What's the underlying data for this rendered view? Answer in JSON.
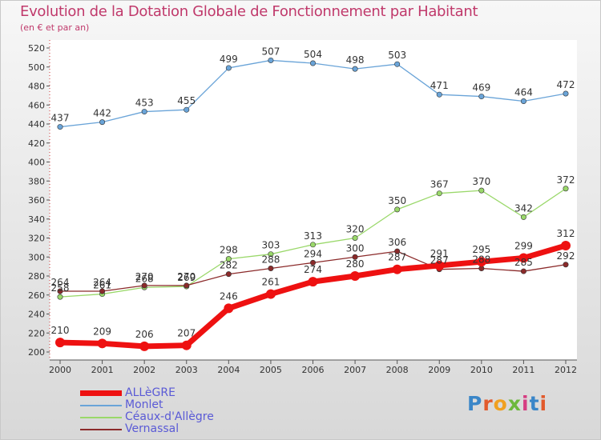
{
  "title": "Evolution de la Dotation Globale de Fonctionnement par Habitant",
  "subtitle": "(en € et par an)",
  "logo": {
    "text": "Proxiti",
    "letters": [
      "P",
      "r",
      "o",
      "x",
      "i",
      "t",
      "i"
    ],
    "colors": [
      "#3a86c8",
      "#e25a2c",
      "#f0a020",
      "#6cb83c",
      "#d63c82",
      "#3a86c8",
      "#e25a2c"
    ]
  },
  "chart_data": {
    "type": "line",
    "title": "Evolution de la Dotation Globale de Fonctionnement par Habitant",
    "subtitle": "(en € et par an)",
    "xlabel": "",
    "ylabel": "",
    "x": [
      "2000",
      "2001",
      "2002",
      "2003",
      "2004",
      "2005",
      "2006",
      "2007",
      "2008",
      "2009",
      "2010",
      "2011",
      "2012"
    ],
    "ylim": [
      200,
      520
    ],
    "yticks": [
      200,
      220,
      240,
      260,
      280,
      300,
      320,
      340,
      360,
      380,
      400,
      420,
      440,
      460,
      480,
      500,
      520
    ],
    "grid": false,
    "legend": "bottom-left",
    "series": [
      {
        "name": "ALLèGRE",
        "color": "#ee1111",
        "values": [
          210,
          209,
          206,
          207,
          246,
          261,
          274,
          280,
          287,
          291,
          295,
          299,
          312
        ]
      },
      {
        "name": "Monlet",
        "color": "#6aa4d8",
        "values": [
          437,
          442,
          453,
          455,
          499,
          507,
          504,
          498,
          503,
          471,
          469,
          464,
          472
        ]
      },
      {
        "name": "Céaux-d'Allègre",
        "color": "#9ad86a",
        "values": [
          258,
          261,
          268,
          269,
          298,
          303,
          313,
          320,
          350,
          367,
          370,
          342,
          372
        ]
      },
      {
        "name": "Vernassal",
        "color": "#8b2a2a",
        "values": [
          264,
          264,
          270,
          270,
          282,
          288,
          294,
          300,
          306,
          287,
          288,
          285,
          292
        ]
      }
    ]
  }
}
